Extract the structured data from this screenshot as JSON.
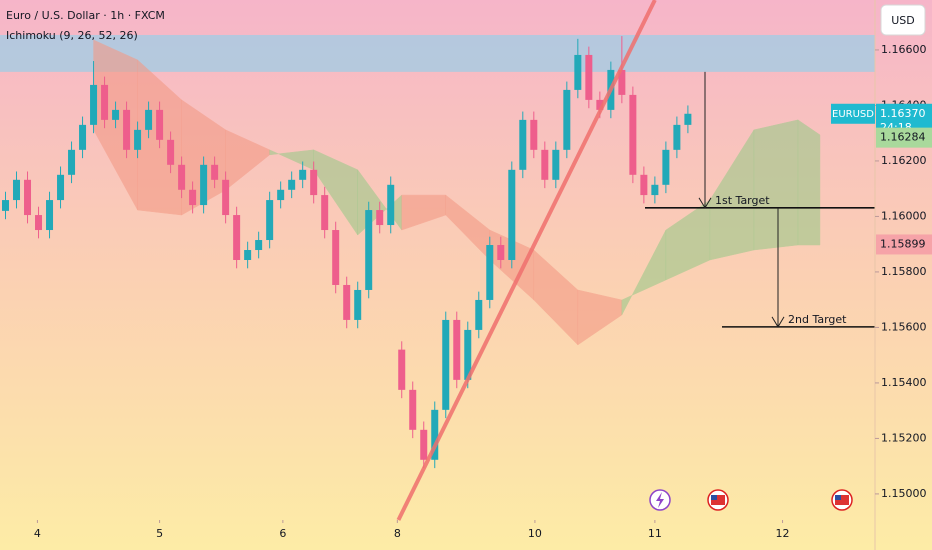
{
  "chart_data": {
    "type": "candlestick",
    "title": "Euro / U.S. Dollar · 1h · FXCM",
    "indicator": "Ichimoku (9, 26, 52, 26)",
    "currency": "USD",
    "up_color": "#22a9b8",
    "down_color": "#ee5e8c",
    "xlim": [
      -0.5,
      79
    ],
    "ylim": [
      1.14906,
      1.1678
    ],
    "xticks": [
      {
        "value": 2.9,
        "label": "4"
      },
      {
        "value": 14,
        "label": "5"
      },
      {
        "value": 25.2,
        "label": "6"
      },
      {
        "value": 35.6,
        "label": "8"
      },
      {
        "value": 48.1,
        "label": "10"
      },
      {
        "value": 59,
        "label": "11"
      },
      {
        "value": 70.6,
        "label": "12"
      }
    ],
    "yticks": [
      {
        "value": 1.15,
        "label": "1.15000"
      },
      {
        "value": 1.152,
        "label": "1.15200"
      },
      {
        "value": 1.154,
        "label": "1.15400"
      },
      {
        "value": 1.156,
        "label": "1.15600"
      },
      {
        "value": 1.158,
        "label": "1.15800"
      },
      {
        "value": 1.16,
        "label": "1.16000"
      },
      {
        "value": 1.162,
        "label": "1.16200"
      },
      {
        "value": 1.164,
        "label": "1.16400"
      },
      {
        "value": 1.166,
        "label": "1.16600"
      }
    ],
    "x": [
      0,
      1,
      2,
      3,
      4,
      5,
      6,
      7,
      8,
      9,
      10,
      11,
      12,
      13,
      14,
      15,
      16,
      17,
      18,
      19,
      20,
      21,
      22,
      23,
      24,
      25,
      26,
      27,
      28,
      29,
      30,
      31,
      32,
      33,
      34,
      35,
      36,
      37,
      38,
      39,
      40,
      41,
      42,
      43,
      44,
      45,
      46,
      47,
      48,
      49,
      50,
      51,
      52,
      53,
      54,
      55,
      56,
      57,
      58,
      59,
      60,
      61,
      62
    ],
    "open": [
      1.1602,
      1.16059,
      1.16132,
      1.16005,
      1.15951,
      1.16059,
      1.1615,
      1.1624,
      1.1633,
      1.16474,
      1.16348,
      1.16384,
      1.1624,
      1.16312,
      1.16384,
      1.16276,
      1.16186,
      1.16096,
      1.16041,
      1.16186,
      1.16132,
      1.16005,
      1.15843,
      1.15879,
      1.15915,
      1.16059,
      1.16096,
      1.16132,
      1.16168,
      1.16077,
      1.15951,
      1.15753,
      1.15627,
      1.15735,
      1.16023,
      1.15969,
      1.1552,
      1.15375,
      1.15231,
      1.15123,
      1.15303,
      1.15627,
      1.15411,
      1.15591,
      1.15699,
      1.15897,
      1.15843,
      1.16168,
      1.16348,
      1.1624,
      1.16132,
      1.1624,
      1.16456,
      1.16582,
      1.1642,
      1.16384,
      1.16528,
      1.16438,
      1.1615,
      1.16077,
      1.16114,
      1.1624,
      1.1633
    ],
    "high": [
      1.16089,
      1.16162,
      1.16162,
      1.16035,
      1.16089,
      1.1618,
      1.1627,
      1.1636,
      1.1656,
      1.16504,
      1.16414,
      1.16414,
      1.16342,
      1.16414,
      1.16414,
      1.16306,
      1.16216,
      1.16126,
      1.16216,
      1.16216,
      1.16162,
      1.16035,
      1.15909,
      1.15945,
      1.16089,
      1.16126,
      1.16162,
      1.16198,
      1.16198,
      1.16107,
      1.15981,
      1.15783,
      1.15765,
      1.16053,
      1.16053,
      1.16144,
      1.1555,
      1.15405,
      1.15261,
      1.15333,
      1.15657,
      1.15657,
      1.15621,
      1.15729,
      1.15927,
      1.15927,
      1.16198,
      1.16378,
      1.16378,
      1.1627,
      1.1627,
      1.16486,
      1.1664,
      1.16612,
      1.1645,
      1.16558,
      1.1665,
      1.16468,
      1.1618,
      1.16144,
      1.1627,
      1.1636,
      1.164
    ],
    "low": [
      1.1599,
      1.16029,
      1.15975,
      1.15921,
      1.15921,
      1.16029,
      1.1612,
      1.1621,
      1.163,
      1.16318,
      1.16318,
      1.1621,
      1.1621,
      1.16282,
      1.16246,
      1.16156,
      1.16066,
      1.16011,
      1.16011,
      1.16102,
      1.15975,
      1.15813,
      1.15813,
      1.15849,
      1.15885,
      1.16029,
      1.16066,
      1.16102,
      1.16047,
      1.15921,
      1.15723,
      1.15597,
      1.15597,
      1.15705,
      1.15939,
      1.15939,
      1.15345,
      1.15201,
      1.15093,
      1.15093,
      1.15273,
      1.15381,
      1.15381,
      1.15561,
      1.15669,
      1.15813,
      1.15813,
      1.16138,
      1.1621,
      1.16102,
      1.16102,
      1.1621,
      1.16426,
      1.1639,
      1.16354,
      1.16354,
      1.16408,
      1.1612,
      1.16047,
      1.16047,
      1.16084,
      1.1621,
      1.163
    ],
    "close": [
      1.16059,
      1.16132,
      1.16005,
      1.15951,
      1.16059,
      1.1615,
      1.1624,
      1.1633,
      1.16474,
      1.16348,
      1.16384,
      1.1624,
      1.16312,
      1.16384,
      1.16276,
      1.16186,
      1.16096,
      1.16041,
      1.16186,
      1.16132,
      1.16005,
      1.15843,
      1.15879,
      1.15915,
      1.16059,
      1.16096,
      1.16132,
      1.16168,
      1.16077,
      1.15951,
      1.15753,
      1.15627,
      1.15735,
      1.16023,
      1.15969,
      1.16114,
      1.15375,
      1.15231,
      1.15123,
      1.15303,
      1.15627,
      1.15411,
      1.15591,
      1.15699,
      1.15897,
      1.15843,
      1.16168,
      1.16348,
      1.1624,
      1.16132,
      1.1624,
      1.16456,
      1.16582,
      1.1642,
      1.16384,
      1.16528,
      1.16438,
      1.1615,
      1.16077,
      1.16114,
      1.1624,
      1.1633,
      1.1637
    ],
    "cloud": {
      "x": [
        8,
        12,
        16,
        20,
        24,
        28,
        32,
        36,
        40,
        44,
        48,
        52,
        56,
        60,
        64,
        68,
        72,
        74
      ],
      "span_a": [
        1.16312,
        1.16023,
        1.16005,
        1.16095,
        1.16222,
        1.1624,
        1.16168,
        1.15951,
        1.16005,
        1.15843,
        1.15699,
        1.15537,
        1.15645,
        1.15951,
        1.16059,
        1.16312,
        1.16348,
        1.16294
      ],
      "span_b": [
        1.16636,
        1.16564,
        1.1642,
        1.16312,
        1.1624,
        1.16168,
        1.15933,
        1.16077,
        1.16077,
        1.15951,
        1.15879,
        1.15735,
        1.15699,
        1.15771,
        1.15843,
        1.15879,
        1.15897,
        1.15897
      ],
      "up_color": "#9cc98a",
      "down_color": "#f39a86"
    },
    "zone": [
      1.16521,
      1.16654
    ],
    "zone_color": "#9fcde6",
    "trendline": {
      "x": [
        35.7,
        59.0
      ],
      "y": [
        1.14906,
        1.1678
      ],
      "color": "#f0706e"
    },
    "targets": [
      {
        "label": "1st Target",
        "value": 1.16031
      },
      {
        "label": "2nd Target",
        "value": 1.15602
      }
    ],
    "price_labels": [
      {
        "name": "EURUSD",
        "value": 1.1637,
        "label": "1.16370",
        "countdown": "24:18",
        "color": "#1fbad0"
      },
      {
        "value": 1.16284,
        "label": "1.16284",
        "color": "#a9d99c"
      },
      {
        "value": 1.15899,
        "label": "1.15899",
        "color": "#f6a3a8"
      }
    ]
  }
}
